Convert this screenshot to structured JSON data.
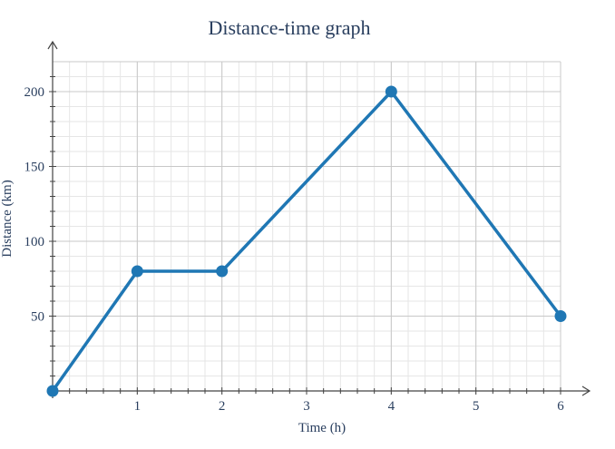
{
  "chart_data": {
    "type": "line",
    "title": "Distance-time graph",
    "xlabel": "Time (h)",
    "ylabel": "Distance (km)",
    "x": [
      0,
      1,
      2,
      4,
      6
    ],
    "series": [
      {
        "values": [
          0,
          80,
          80,
          200,
          50
        ]
      }
    ],
    "xlim": [
      0,
      6.4
    ],
    "ylim": [
      -2,
      220
    ],
    "x_ticks": [
      1,
      2,
      3,
      4,
      5,
      6
    ],
    "y_ticks": [
      50,
      100,
      150,
      200
    ],
    "x_minor_step": 0.2,
    "y_minor_step": 10,
    "grid": true,
    "colors": {
      "line": "#1f77b4",
      "text": "#2a3f5f",
      "axis": "#444444",
      "major_grid": "#c8c8c8",
      "minor_grid": "#e6e6e6"
    }
  }
}
